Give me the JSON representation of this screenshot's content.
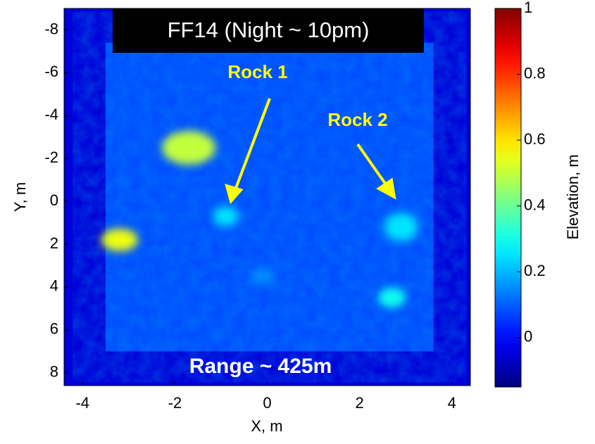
{
  "chart_data": {
    "type": "heatmap",
    "title": "FF14 (Night ~ 10pm)",
    "x_label": "X, m",
    "y_label": "Y, m",
    "colorbar_label": "Elevation, m",
    "xlim": [
      -4.4,
      4.4
    ],
    "ylim": [
      -9,
      8.6
    ],
    "xticks": [
      -4,
      -2,
      0,
      2,
      4
    ],
    "yticks": [
      -8,
      -6,
      -4,
      -2,
      0,
      2,
      4,
      6,
      8
    ],
    "clim": [
      -0.15,
      1
    ],
    "cticks": [
      0,
      0.2,
      0.4,
      0.6,
      0.8,
      1
    ],
    "colormap": "jet",
    "background_value": -0.05,
    "scan_region": {
      "xlim": [
        -3.5,
        3.6
      ],
      "ylim": [
        -7.4,
        7
      ],
      "value": 0.08
    },
    "features": [
      {
        "x": -1.7,
        "y": -2.5,
        "value": 0.5
      },
      {
        "x": -3.2,
        "y": 1.8,
        "value": 0.55
      },
      {
        "x": -0.9,
        "y": 0.7,
        "value": 0.25
      },
      {
        "x": 2.9,
        "y": 1.2,
        "value": 0.25
      },
      {
        "x": 2.7,
        "y": 4.5,
        "value": 0.3
      },
      {
        "x": -0.1,
        "y": 3.5,
        "value": 0.15
      }
    ],
    "annotations": [
      "Rock 1",
      "Rock 2",
      "Range ~ 425m"
    ]
  }
}
